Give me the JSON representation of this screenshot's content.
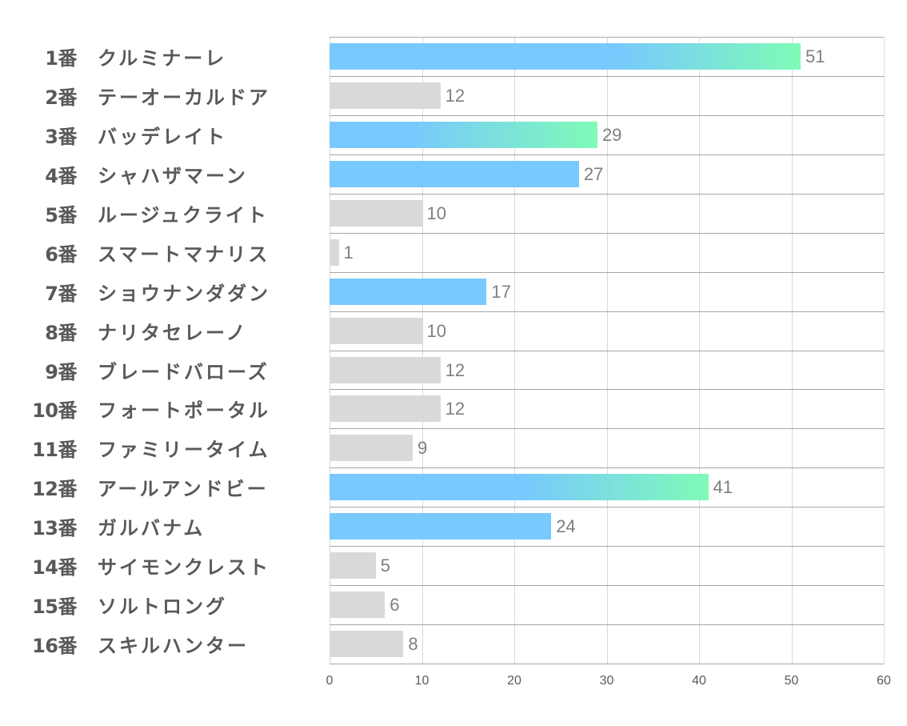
{
  "chart_data": {
    "type": "bar",
    "orientation": "horizontal",
    "title": "",
    "xlabel": "",
    "ylabel": "",
    "xlim": [
      0,
      60
    ],
    "xticks": [
      0,
      10,
      20,
      30,
      40,
      50,
      60
    ],
    "grid": true,
    "legend": null,
    "categories": [
      {
        "num": "1番",
        "name": "クルミナーレ"
      },
      {
        "num": "2番",
        "name": "テーオーカルドア"
      },
      {
        "num": "3番",
        "name": "バッデレイト"
      },
      {
        "num": "4番",
        "name": "シャハザマーン"
      },
      {
        "num": "5番",
        "name": "ルージュクライト"
      },
      {
        "num": "6番",
        "name": "スマートマナリス"
      },
      {
        "num": "7番",
        "name": "ショウナンダダン"
      },
      {
        "num": "8番",
        "name": "ナリタセレーノ"
      },
      {
        "num": "9番",
        "name": "ブレードバローズ"
      },
      {
        "num": "10番",
        "name": "フォートポータル"
      },
      {
        "num": "11番",
        "name": "ファミリータイム"
      },
      {
        "num": "12番",
        "name": "アールアンドビー"
      },
      {
        "num": "13番",
        "name": "ガルバナム"
      },
      {
        "num": "14番",
        "name": "サイモンクレスト"
      },
      {
        "num": "15番",
        "name": "ソルトロング"
      },
      {
        "num": "16番",
        "name": "スキルハンター"
      }
    ],
    "values": [
      51,
      12,
      29,
      27,
      10,
      1,
      17,
      10,
      12,
      12,
      9,
      41,
      24,
      5,
      6,
      8
    ],
    "bar_styles": [
      "gradient",
      "grey",
      "gradient",
      "blue",
      "grey",
      "grey",
      "blue",
      "grey",
      "grey",
      "grey",
      "grey",
      "gradient",
      "blue",
      "grey",
      "grey",
      "grey"
    ],
    "colors": {
      "blue": "#78c9fd",
      "gradient_end": "#7ffbb7",
      "grey": "#d9d9d9",
      "label": "#595959",
      "value": "#7f7f7f"
    }
  }
}
